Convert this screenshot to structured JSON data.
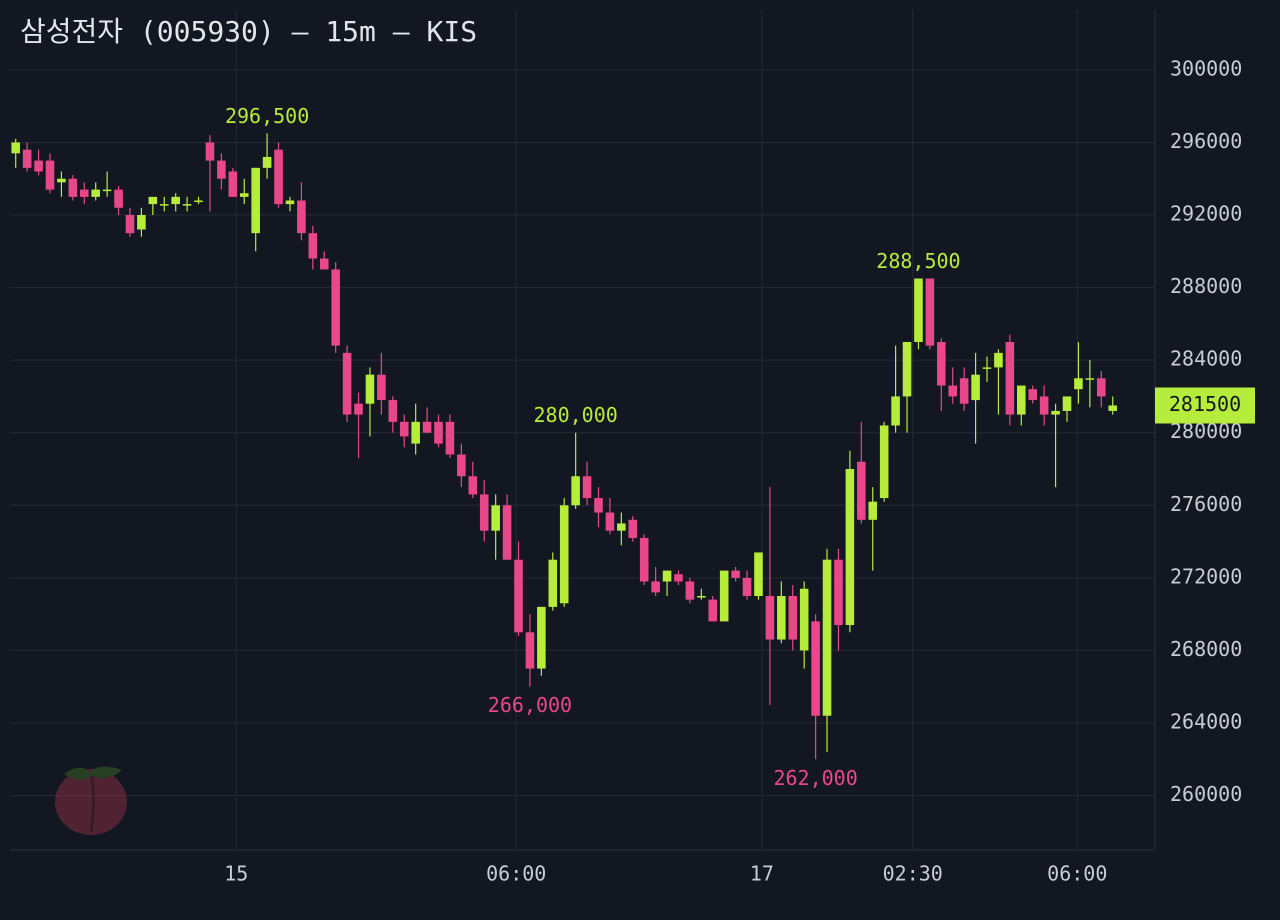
{
  "chart_data": {
    "type": "candlestick",
    "title": "삼성전자 (005930) — 15m — KIS",
    "up_color": "#b6ec3c",
    "down_color": "#e8488a",
    "open": [
      295400,
      295600,
      295000,
      295000,
      293800,
      294000,
      293400,
      293000,
      293400,
      293400,
      292000,
      291200,
      292600,
      292600,
      292600,
      292600,
      292800,
      296000,
      295000,
      294400,
      293000,
      291000,
      294600,
      295600,
      292600,
      292800,
      291000,
      289600,
      289000,
      284400,
      281600,
      281600,
      283200,
      281800,
      280600,
      279400,
      280600,
      280600,
      280600,
      278800,
      277600,
      276600,
      274600,
      276000,
      273000,
      269000,
      267000,
      270400,
      270600,
      276000,
      277600,
      276400,
      275600,
      274600,
      275200,
      274200,
      271800,
      271800,
      272200,
      271800,
      271000,
      270800,
      269600,
      272400,
      272000,
      271000,
      271000,
      268600,
      271000,
      268000,
      269600,
      264400,
      273000,
      269400,
      278400,
      275200,
      276400,
      280400,
      282000,
      285000,
      288500,
      285000,
      282600,
      283000,
      281800,
      283600,
      283600,
      285000,
      281000,
      282400,
      282000,
      281000,
      281200,
      282400,
      283000,
      283000,
      281200
    ],
    "high": [
      296200,
      296000,
      295600,
      295400,
      294400,
      294200,
      293800,
      293800,
      294400,
      293600,
      292400,
      292400,
      293000,
      293000,
      293200,
      293000,
      293000,
      296400,
      295400,
      294600,
      294000,
      294600,
      296500,
      296000,
      293000,
      293800,
      291400,
      290000,
      289400,
      284800,
      282200,
      283600,
      284400,
      282000,
      281000,
      281600,
      281400,
      281000,
      281000,
      279400,
      278400,
      277400,
      276600,
      276600,
      274000,
      270000,
      270400,
      273400,
      276400,
      280000,
      278400,
      277000,
      276400,
      275600,
      275400,
      274400,
      272600,
      272400,
      272400,
      272000,
      271400,
      271000,
      272400,
      272600,
      272400,
      273400,
      277000,
      271800,
      271600,
      271800,
      270000,
      273600,
      273600,
      279000,
      280600,
      277000,
      280600,
      284800,
      285000,
      288500,
      288500,
      285200,
      283600,
      283600,
      284400,
      284200,
      284600,
      285400,
      282600,
      282600,
      282600,
      281600,
      282000,
      285000,
      284000,
      283400,
      282000
    ],
    "low": [
      294600,
      294400,
      294200,
      293200,
      293000,
      292800,
      292600,
      292800,
      293000,
      292000,
      290800,
      290800,
      292000,
      292200,
      292200,
      292200,
      292600,
      292200,
      293400,
      293000,
      292600,
      290000,
      294000,
      292400,
      292200,
      290600,
      289000,
      289000,
      284400,
      280600,
      278600,
      279800,
      281000,
      280000,
      279200,
      278800,
      280000,
      279200,
      278600,
      277000,
      276400,
      274000,
      273000,
      273000,
      268800,
      266000,
      266600,
      270200,
      270400,
      275800,
      276000,
      274800,
      274400,
      273800,
      274000,
      271600,
      271000,
      271000,
      271600,
      270600,
      270800,
      269600,
      269600,
      271800,
      270800,
      270800,
      265000,
      268400,
      268000,
      267000,
      262000,
      262400,
      268000,
      269000,
      275000,
      272400,
      276200,
      280000,
      280000,
      284600,
      284600,
      281200,
      281600,
      281200,
      279400,
      282800,
      281000,
      280400,
      280400,
      281600,
      280400,
      277000,
      280600,
      281600,
      281400,
      281400,
      281000
    ],
    "close": [
      296000,
      294600,
      294400,
      293400,
      294000,
      293000,
      293000,
      293400,
      293400,
      292400,
      291000,
      292000,
      293000,
      292600,
      293000,
      292600,
      292800,
      295000,
      294000,
      293000,
      293200,
      294600,
      295200,
      292600,
      292800,
      291000,
      289600,
      289000,
      284800,
      281000,
      281000,
      283200,
      281800,
      280600,
      279800,
      280600,
      280000,
      279400,
      278800,
      277600,
      276600,
      274600,
      276000,
      273000,
      269000,
      267000,
      270400,
      273000,
      276000,
      277600,
      276400,
      275600,
      274600,
      275000,
      274200,
      271800,
      271200,
      272400,
      271800,
      270800,
      271000,
      269600,
      272400,
      272000,
      271000,
      273400,
      268600,
      271000,
      268600,
      271400,
      264400,
      273000,
      269400,
      278000,
      275200,
      276200,
      280400,
      282000,
      285000,
      288500,
      284800,
      282600,
      282000,
      281600,
      283200,
      283600,
      284400,
      281000,
      282600,
      281800,
      281000,
      281200,
      282000,
      283000,
      283000,
      282000,
      281500
    ],
    "xlim": [
      -0.5,
      99.7
    ],
    "xticks": [
      {
        "value": 19.3,
        "label": "15"
      },
      {
        "value": 43.8,
        "label": "06:00"
      },
      {
        "value": 65.3,
        "label": "17"
      },
      {
        "value": 78.5,
        "label": "02:30"
      },
      {
        "value": 92.9,
        "label": "06:00"
      }
    ],
    "ylim": [
      257000,
      303300
    ],
    "yticks": [
      260000,
      264000,
      268000,
      272000,
      276000,
      280000,
      284000,
      288000,
      292000,
      296000,
      300000
    ],
    "grid": true,
    "annotations": [
      {
        "label": "296,500",
        "value": 296500,
        "color": "#b6ec3c"
      },
      {
        "label": "280,000",
        "value": 280000,
        "color": "#b6ec3c"
      },
      {
        "label": "288,500",
        "value": 288500,
        "color": "#b6ec3c"
      },
      {
        "label": "266,000",
        "value": 266000,
        "color": "#e8488a"
      },
      {
        "label": "262,000",
        "value": 262000,
        "color": "#e8488a"
      }
    ],
    "last_price": 281500
  }
}
